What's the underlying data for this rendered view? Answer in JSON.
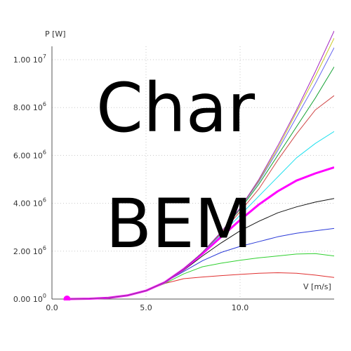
{
  "chart_data": {
    "type": "line",
    "ylabel": "P [W]",
    "xlabel": "V [m/s]",
    "xlim": [
      0,
      15
    ],
    "ylim": [
      0,
      10000000
    ],
    "x_ticks": [
      {
        "value": 0,
        "label": "0.0"
      },
      {
        "value": 5,
        "label": "5.0"
      },
      {
        "value": 10,
        "label": "10.0"
      }
    ],
    "y_ticks": [
      {
        "value": 0,
        "mant": "0.00 10",
        "exp": "0"
      },
      {
        "value": 2000000,
        "mant": "2.00 10",
        "exp": "6"
      },
      {
        "value": 4000000,
        "mant": "4.00 10",
        "exp": "6"
      },
      {
        "value": 6000000,
        "mant": "6.00 10",
        "exp": "6"
      },
      {
        "value": 8000000,
        "mant": "8.00 10",
        "exp": "6"
      },
      {
        "value": 10000000,
        "mant": "1.00 10",
        "exp": "7"
      }
    ],
    "grid": true,
    "series": [
      {
        "color": "#e03030",
        "width": 1,
        "x": [
          0.8,
          2,
          3,
          4,
          5,
          6,
          7,
          8,
          9,
          10,
          11,
          12,
          13,
          14,
          15
        ],
        "y": [
          0,
          15000,
          50000,
          150000,
          350000,
          650000,
          850000,
          920000,
          980000,
          1030000,
          1080000,
          1100000,
          1080000,
          1000000,
          900000
        ]
      },
      {
        "color": "#30d030",
        "width": 1,
        "x": [
          0.8,
          2,
          3,
          4,
          5,
          6,
          7,
          8,
          9,
          10,
          11,
          12,
          13,
          14,
          15
        ],
        "y": [
          0,
          15000,
          50000,
          150000,
          350000,
          650000,
          1050000,
          1350000,
          1500000,
          1620000,
          1720000,
          1800000,
          1880000,
          1900000,
          1800000
        ]
      },
      {
        "color": "#2a3ad8",
        "width": 1,
        "x": [
          0.8,
          2,
          3,
          4,
          5,
          6,
          7,
          8,
          9,
          10,
          11,
          12,
          13,
          14,
          15
        ],
        "y": [
          0,
          15000,
          50000,
          150000,
          350000,
          700000,
          1150000,
          1600000,
          1950000,
          2200000,
          2400000,
          2600000,
          2750000,
          2850000,
          2950000
        ]
      },
      {
        "color": "#111111",
        "width": 1,
        "x": [
          0.8,
          2,
          3,
          4,
          5,
          6,
          7,
          8,
          9,
          10,
          11,
          12,
          13,
          14,
          15
        ],
        "y": [
          0,
          15000,
          50000,
          150000,
          350000,
          700000,
          1200000,
          1800000,
          2350000,
          2850000,
          3250000,
          3600000,
          3850000,
          4050000,
          4200000
        ]
      },
      {
        "color": "#ff00ff",
        "width": 3,
        "x": [
          0.8,
          2,
          3,
          4,
          5,
          6,
          7,
          8,
          9,
          10,
          11,
          12,
          13,
          14,
          15
        ],
        "y": [
          0,
          15000,
          50000,
          150000,
          350000,
          700000,
          1250000,
          1900000,
          2600000,
          3300000,
          3950000,
          4500000,
          4950000,
          5250000,
          5500000
        ]
      },
      {
        "color": "#20e0ee",
        "width": 1,
        "x": [
          0.8,
          2,
          3,
          4,
          5,
          6,
          7,
          8,
          9,
          10,
          11,
          12,
          13,
          14,
          15
        ],
        "y": [
          0,
          15000,
          50000,
          150000,
          350000,
          700000,
          1250000,
          1950000,
          2700000,
          3500000,
          4300000,
          5100000,
          5900000,
          6500000,
          7000000
        ]
      },
      {
        "color": "#d04848",
        "width": 1,
        "x": [
          0.8,
          2,
          3,
          4,
          5,
          6,
          7,
          8,
          9,
          10,
          11,
          12,
          13,
          14,
          15
        ],
        "y": [
          0,
          15000,
          50000,
          150000,
          350000,
          700000,
          1250000,
          1950000,
          2750000,
          3650000,
          4600000,
          5800000,
          6900000,
          7900000,
          8500000
        ]
      },
      {
        "color": "#10a030",
        "width": 1,
        "x": [
          0.8,
          2,
          3,
          4,
          5,
          6,
          7,
          8,
          9,
          10,
          11,
          12,
          13,
          14,
          15
        ],
        "y": [
          0,
          15000,
          50000,
          150000,
          350000,
          700000,
          1250000,
          1950000,
          2800000,
          3750000,
          4800000,
          6000000,
          7200000,
          8400000,
          9700000
        ]
      },
      {
        "color": "#6a6af0",
        "width": 1,
        "x": [
          0.8,
          2,
          3,
          4,
          5,
          6,
          7,
          8,
          9,
          10,
          11,
          12,
          13,
          14,
          15
        ],
        "y": [
          0,
          15000,
          50000,
          150000,
          350000,
          700000,
          1250000,
          1950000,
          2800000,
          3800000,
          4900000,
          6200000,
          7600000,
          9000000,
          10500000
        ]
      },
      {
        "color": "#c8c820",
        "width": 1,
        "x": [
          0.8,
          2,
          3,
          4,
          5,
          6,
          7,
          8,
          9,
          10,
          11,
          12,
          13,
          14,
          15
        ],
        "y": [
          0,
          15000,
          50000,
          150000,
          350000,
          700000,
          1250000,
          1950000,
          2800000,
          3800000,
          4950000,
          6300000,
          7800000,
          9300000,
          10900000
        ]
      },
      {
        "color": "#a020c0",
        "width": 1,
        "x": [
          0.8,
          2,
          3,
          4,
          5,
          6,
          7,
          8,
          9,
          10,
          11,
          12,
          13,
          14,
          15
        ],
        "y": [
          0,
          15000,
          50000,
          150000,
          350000,
          700000,
          1250000,
          1950000,
          2800000,
          3800000,
          5000000,
          6400000,
          7900000,
          9500000,
          11200000
        ]
      }
    ],
    "marker": {
      "x": 0.8,
      "y": 0,
      "color": "#ff00ff"
    }
  },
  "overlay": {
    "line1": "Char",
    "line2": "BEM"
  }
}
